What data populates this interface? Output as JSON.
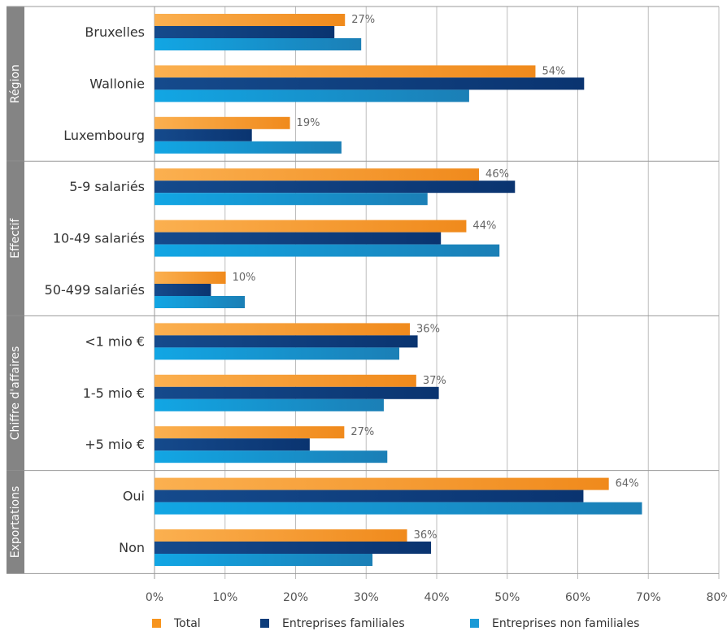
{
  "chart_data": {
    "type": "bar",
    "orientation": "horizontal",
    "xlim": [
      0,
      80
    ],
    "x_ticks": [
      "0%",
      "10%",
      "20%",
      "30%",
      "40%",
      "50%",
      "60%",
      "70%",
      "80%"
    ],
    "grid": true,
    "legend_placement": "bottom",
    "series": [
      {
        "name": "Total",
        "color": "#f7941d"
      },
      {
        "name": "Entreprises familiales",
        "color": "#0b3c7a"
      },
      {
        "name": "Entreprises non familiales",
        "color": "#1a9ad6"
      }
    ],
    "groups": [
      {
        "label": "Région",
        "categories": [
          {
            "label": "Bruxelles",
            "values": [
              27,
              25.5,
              29.3
            ],
            "data_label": "27%"
          },
          {
            "label": "Wallonie",
            "values": [
              54,
              60.9,
              44.6
            ],
            "data_label": "54%"
          },
          {
            "label": "Luxembourg",
            "values": [
              19.2,
              13.8,
              26.5
            ],
            "data_label": "19%"
          }
        ]
      },
      {
        "label": "Effectif",
        "categories": [
          {
            "label": "5-9 salariés",
            "values": [
              46,
              51.1,
              38.7
            ],
            "data_label": "46%"
          },
          {
            "label": "10-49 salariés",
            "values": [
              44.2,
              40.6,
              48.9
            ],
            "data_label": "44%"
          },
          {
            "label": "50-499 salariés",
            "values": [
              10.1,
              8.0,
              12.8
            ],
            "data_label": "10%"
          }
        ]
      },
      {
        "label": "Chiffre d'affaires",
        "categories": [
          {
            "label": "<1 mio €",
            "values": [
              36.2,
              37.3,
              34.7
            ],
            "data_label": "36%"
          },
          {
            "label": "1-5 mio €",
            "values": [
              37.1,
              40.3,
              32.5
            ],
            "data_label": "37%"
          },
          {
            "label": "+5 mio €",
            "values": [
              26.9,
              22.0,
              33.0
            ],
            "data_label": "27%"
          }
        ]
      },
      {
        "label": "Exportations",
        "categories": [
          {
            "label": "Oui",
            "values": [
              64.4,
              60.8,
              69.1
            ],
            "data_label": "64%"
          },
          {
            "label": "Non",
            "values": [
              35.8,
              39.2,
              30.9
            ],
            "data_label": "36%"
          }
        ]
      }
    ]
  }
}
